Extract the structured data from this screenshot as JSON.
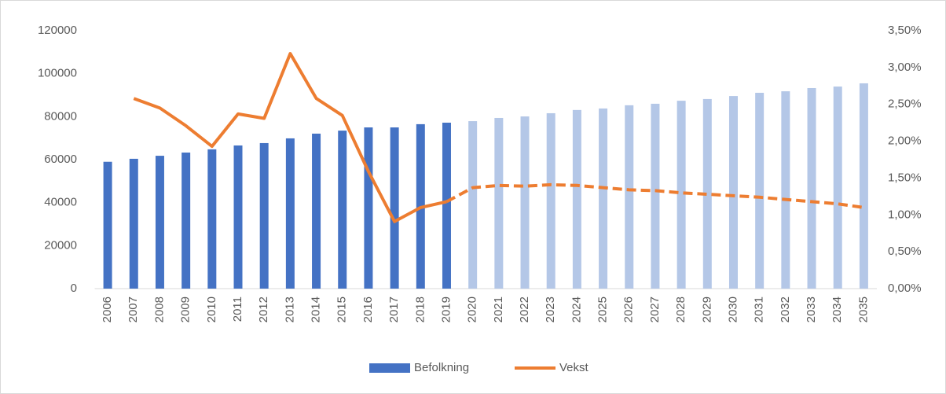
{
  "chart_data": {
    "type": "bar-line",
    "categories": [
      "2006",
      "2007",
      "2008",
      "2009",
      "2010",
      "2011",
      "2012",
      "2013",
      "2014",
      "2015",
      "2016",
      "2017",
      "2018",
      "2019",
      "2020",
      "2021",
      "2022",
      "2023",
      "2024",
      "2025",
      "2026",
      "2027",
      "2028",
      "2029",
      "2030",
      "2031",
      "2032",
      "2033",
      "2034",
      "2035"
    ],
    "series": [
      {
        "name": "Befolkning",
        "type": "bar",
        "axis": "y",
        "values": [
          59000,
          60400,
          61800,
          63300,
          64800,
          66600,
          67700,
          69900,
          72100,
          73500,
          75000,
          75000,
          76500,
          77200,
          77900,
          79400,
          80100,
          81600,
          83100,
          83800,
          85300,
          86000,
          87400,
          88200,
          89600,
          91100,
          91800,
          93300,
          94000,
          95500
        ],
        "color": "#4472c4",
        "colors": [
          "#4472c4",
          "#4472c4",
          "#4472c4",
          "#4472c4",
          "#4472c4",
          "#4472c4",
          "#4472c4",
          "#4472c4",
          "#4472c4",
          "#4472c4",
          "#4472c4",
          "#4472c4",
          "#4472c4",
          "#4472c4",
          "#b4c7e7",
          "#b4c7e7",
          "#b4c7e7",
          "#b4c7e7",
          "#b4c7e7",
          "#b4c7e7",
          "#b4c7e7",
          "#b4c7e7",
          "#b4c7e7",
          "#b4c7e7",
          "#b4c7e7",
          "#b4c7e7",
          "#b4c7e7",
          "#b4c7e7",
          "#b4c7e7",
          "#b4c7e7"
        ]
      },
      {
        "name": "Vekst",
        "type": "line",
        "axis": "y2",
        "color": "#ed7d31",
        "values": [
          null,
          2.58,
          2.45,
          2.21,
          1.93,
          2.37,
          2.31,
          3.19,
          2.58,
          2.35,
          1.59,
          0.91,
          1.1,
          1.18,
          1.37,
          1.4,
          1.39,
          1.41,
          1.4,
          1.37,
          1.34,
          1.33,
          1.3,
          1.28,
          1.26,
          1.24,
          1.21,
          1.18,
          1.15,
          1.1
        ],
        "dashed": [
          false,
          false,
          false,
          false,
          false,
          false,
          false,
          false,
          false,
          false,
          false,
          false,
          false,
          false,
          true,
          true,
          true,
          true,
          true,
          true,
          true,
          true,
          true,
          true,
          true,
          true,
          true,
          true,
          true,
          true
        ]
      }
    ],
    "ylim": [
      0,
      120000
    ],
    "yticks": [
      0,
      20000,
      40000,
      60000,
      80000,
      100000,
      120000
    ],
    "y2lim": [
      0,
      3.5
    ],
    "y2ticks": [
      {
        "value": 0,
        "label": "0,00%"
      },
      {
        "value": 0.5,
        "label": "0,50%"
      },
      {
        "value": 1,
        "label": "1,00%"
      },
      {
        "value": 1.5,
        "label": "1,50%"
      },
      {
        "value": 2,
        "label": "2,00%"
      },
      {
        "value": 2.5,
        "label": "2,50%"
      },
      {
        "value": 3,
        "label": "3,00%"
      },
      {
        "value": 3.5,
        "label": "3,50%"
      }
    ],
    "legend": "bottom"
  }
}
